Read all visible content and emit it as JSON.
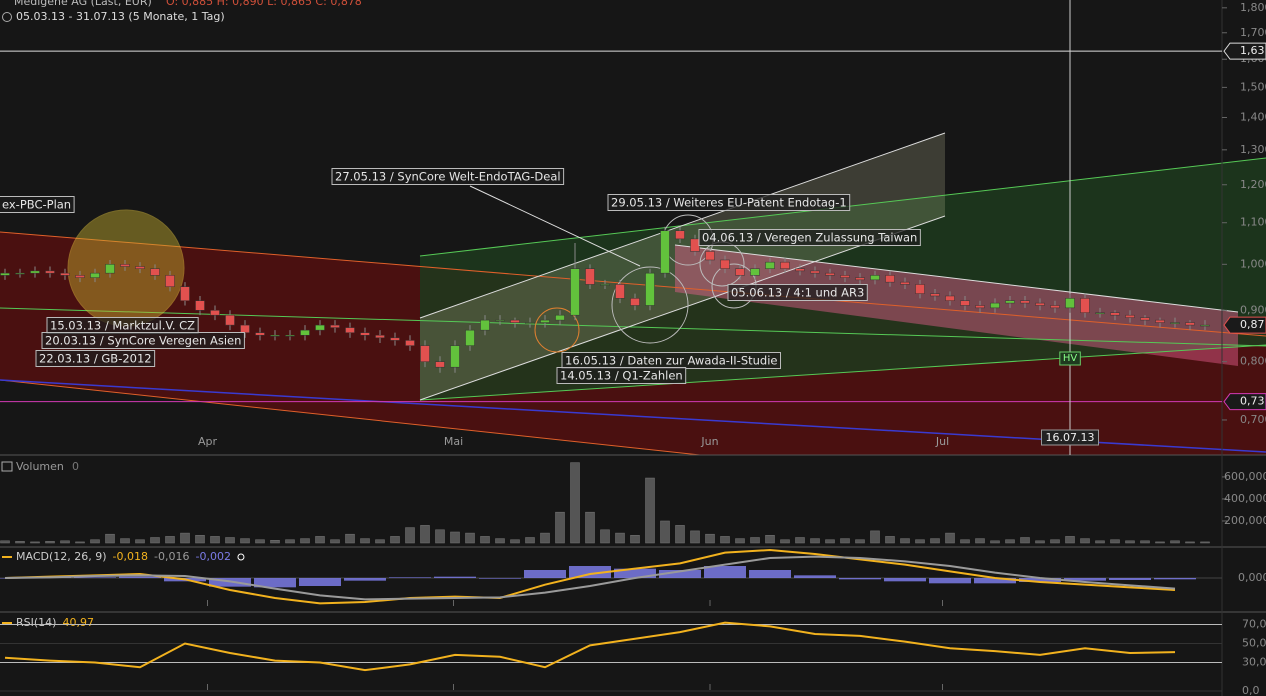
{
  "header": {
    "instrument": "Medigene AG (Last, EUR)",
    "ohlc": "O: 0,885  H: 0,890  L: 0,865  C: 0,878",
    "range": "05.03.13 - 31.07.13 (5 Monate, 1 Tag)"
  },
  "chart_data": [
    {
      "type": "candlestick",
      "open": [
        0.975,
        0.98,
        0.98,
        0.985,
        0.98,
        0.975,
        0.97,
        0.98,
        1.0,
        0.995,
        0.99,
        0.975,
        0.95,
        0.92,
        0.9,
        0.89,
        0.87,
        0.855,
        0.85,
        0.85,
        0.85,
        0.86,
        0.87,
        0.865,
        0.855,
        0.85,
        0.845,
        0.84,
        0.83,
        0.8,
        0.79,
        0.83,
        0.86,
        0.88,
        0.88,
        0.875,
        0.875,
        0.88,
        0.89,
        0.99,
        0.955,
        0.955,
        0.925,
        0.91,
        0.98,
        1.08,
        1.06,
        1.03,
        1.01,
        0.99,
        0.975,
        0.99,
        1.005,
        0.99,
        0.985,
        0.98,
        0.975,
        0.97,
        0.965,
        0.975,
        0.96,
        0.955,
        0.935,
        0.93,
        0.92,
        0.91,
        0.905,
        0.915,
        0.92,
        0.915,
        0.91,
        0.905,
        0.925,
        0.895,
        0.895,
        0.89,
        0.885,
        0.88,
        0.875,
        0.875,
        0.87
      ],
      "high": [
        0.99,
        0.99,
        0.995,
        0.995,
        0.99,
        0.985,
        0.99,
        1.01,
        1.01,
        1.005,
        1.0,
        0.985,
        0.96,
        0.93,
        0.91,
        0.9,
        0.88,
        0.865,
        0.86,
        0.86,
        0.87,
        0.88,
        0.88,
        0.875,
        0.865,
        0.86,
        0.855,
        0.85,
        0.84,
        0.81,
        0.84,
        0.87,
        0.89,
        0.89,
        0.885,
        0.885,
        0.89,
        0.9,
        1.05,
        1.0,
        0.965,
        0.965,
        0.935,
        0.99,
        1.09,
        1.09,
        1.07,
        1.04,
        1.02,
        1.0,
        1.0,
        1.015,
        1.015,
        1.0,
        0.995,
        0.99,
        0.985,
        0.98,
        0.985,
        0.985,
        0.97,
        0.965,
        0.945,
        0.94,
        0.93,
        0.92,
        0.925,
        0.93,
        0.93,
        0.925,
        0.92,
        0.935,
        0.935,
        0.905,
        0.9,
        0.9,
        0.89,
        0.885,
        0.885,
        0.88,
        0.88
      ],
      "low": [
        0.965,
        0.97,
        0.97,
        0.97,
        0.965,
        0.96,
        0.96,
        0.97,
        0.985,
        0.98,
        0.965,
        0.94,
        0.91,
        0.89,
        0.88,
        0.86,
        0.845,
        0.84,
        0.84,
        0.84,
        0.84,
        0.85,
        0.855,
        0.845,
        0.84,
        0.835,
        0.83,
        0.82,
        0.79,
        0.78,
        0.78,
        0.82,
        0.85,
        0.87,
        0.865,
        0.865,
        0.865,
        0.87,
        0.88,
        0.945,
        0.945,
        0.915,
        0.9,
        0.9,
        0.97,
        1.05,
        1.02,
        1.0,
        0.98,
        0.965,
        0.965,
        0.98,
        0.98,
        0.975,
        0.97,
        0.965,
        0.96,
        0.955,
        0.955,
        0.95,
        0.945,
        0.925,
        0.92,
        0.91,
        0.9,
        0.895,
        0.895,
        0.905,
        0.905,
        0.9,
        0.895,
        0.895,
        0.885,
        0.885,
        0.88,
        0.875,
        0.87,
        0.865,
        0.865,
        0.86,
        0.86
      ],
      "close": [
        0.98,
        0.98,
        0.985,
        0.98,
        0.975,
        0.97,
        0.98,
        1.0,
        0.995,
        0.99,
        0.975,
        0.95,
        0.92,
        0.9,
        0.89,
        0.87,
        0.855,
        0.85,
        0.85,
        0.85,
        0.86,
        0.87,
        0.865,
        0.855,
        0.85,
        0.845,
        0.84,
        0.83,
        0.8,
        0.79,
        0.83,
        0.86,
        0.88,
        0.88,
        0.875,
        0.875,
        0.88,
        0.89,
        0.99,
        0.955,
        0.955,
        0.925,
        0.91,
        0.98,
        1.08,
        1.06,
        1.03,
        1.01,
        0.99,
        0.975,
        0.99,
        1.005,
        0.99,
        0.985,
        0.98,
        0.975,
        0.97,
        0.965,
        0.975,
        0.96,
        0.955,
        0.935,
        0.93,
        0.92,
        0.91,
        0.905,
        0.915,
        0.92,
        0.915,
        0.91,
        0.905,
        0.925,
        0.895,
        0.895,
        0.89,
        0.885,
        0.88,
        0.875,
        0.875,
        0.87,
        0.87
      ],
      "up_color": "#62c23c",
      "down_color": "#e2514f",
      "log_scale": true,
      "ylim": [
        0.646,
        1.82
      ],
      "yticks": [
        {
          "value": 0.7,
          "label": "0,700"
        },
        {
          "value": 0.8,
          "label": "0,800"
        },
        {
          "value": 0.9,
          "label": "0,900"
        },
        {
          "value": 1.0,
          "label": "1,000"
        },
        {
          "value": 1.1,
          "label": "1,100"
        },
        {
          "value": 1.2,
          "label": "1,200"
        },
        {
          "value": 1.3,
          "label": "1,300"
        },
        {
          "value": 1.4,
          "label": "1,400"
        },
        {
          "value": 1.5,
          "label": "1,500"
        },
        {
          "value": 1.6,
          "label": "1,600"
        },
        {
          "value": 1.7,
          "label": "1,700"
        },
        {
          "value": 1.8,
          "label": "1,800"
        }
      ],
      "xticks": [
        {
          "value": 13.5,
          "label": "Apr"
        },
        {
          "value": 29.9,
          "label": "Mai"
        },
        {
          "value": 47,
          "label": "Jun"
        },
        {
          "value": 62.5,
          "label": "Jul"
        }
      ],
      "price_tags": [
        {
          "value": 1.63,
          "label": "1,63",
          "color": "#dddddd"
        },
        {
          "value": 0.87,
          "label": "0,87",
          "color": "#e2514f"
        },
        {
          "value": 0.73,
          "label": "0,73",
          "color": "#d23ab4"
        }
      ],
      "crosshair": {
        "index": 71,
        "label": "16.07.13"
      },
      "marker": "HV",
      "annotations": [
        "ex-PBC-Plan",
        "15.03.13 / Marktzul.V. CZ",
        "20.03.13 / SynCore Veregen Asien",
        "22.03.13 / GB-2012",
        "27.05.13 / SynCore Welt-EndoTAG-Deal",
        "29.05.13 / Weiteres EU-Patent Endotag-1",
        "04.06.13 / Veregen Zulassung Taiwan",
        "05.06.13 / 4:1 und AR3",
        "16.05.13 / Daten zur Awada-II-Studie",
        "14.05.13 / Q1-Zahlen"
      ]
    },
    {
      "type": "bar",
      "title": "Volumen",
      "title_value": "0",
      "color": "#555555",
      "values": [
        20000,
        15000,
        10000,
        15000,
        20000,
        10000,
        30000,
        80000,
        40000,
        30000,
        50000,
        60000,
        90000,
        70000,
        60000,
        50000,
        40000,
        30000,
        25000,
        30000,
        40000,
        60000,
        30000,
        80000,
        40000,
        30000,
        60000,
        140000,
        160000,
        120000,
        100000,
        90000,
        60000,
        40000,
        30000,
        50000,
        90000,
        280000,
        730000,
        280000,
        120000,
        90000,
        70000,
        590000,
        200000,
        160000,
        110000,
        80000,
        60000,
        40000,
        50000,
        70000,
        30000,
        50000,
        40000,
        30000,
        40000,
        30000,
        110000,
        60000,
        40000,
        30000,
        40000,
        90000,
        30000,
        40000,
        20000,
        30000,
        50000,
        20000,
        30000,
        60000,
        40000,
        20000,
        30000,
        20000,
        20000,
        10000,
        20000,
        10000,
        10000
      ],
      "ylim": [
        0,
        790000
      ],
      "yticks": [
        {
          "value": 200000,
          "label": "200,000"
        },
        {
          "value": 400000,
          "label": "400,000"
        },
        {
          "value": 600000,
          "label": "600,000"
        }
      ]
    },
    {
      "type": "macd",
      "title": "MACD(12, 26, 9)",
      "x": [
        0,
        3,
        6,
        9,
        12,
        15,
        18,
        21,
        24,
        27,
        30,
        33,
        36,
        39,
        42,
        45,
        48,
        51,
        54,
        57,
        60,
        63,
        66,
        69,
        72,
        75,
        78
      ],
      "series": [
        {
          "name": "MACD",
          "last_label": "-0,018",
          "color": "#f2b21e",
          "style": "line",
          "values": [
            0.0,
            0.002,
            0.004,
            0.006,
            -0.002,
            -0.018,
            -0.03,
            -0.038,
            -0.036,
            -0.03,
            -0.028,
            -0.03,
            -0.01,
            0.006,
            0.014,
            0.022,
            0.038,
            0.042,
            0.036,
            0.028,
            0.02,
            0.01,
            0.0,
            -0.006,
            -0.01,
            -0.014,
            -0.018
          ]
        },
        {
          "name": "Signal",
          "last_label": "-0,016",
          "color": "#9a9a9a",
          "style": "line",
          "values": [
            0.0,
            0.001,
            0.003,
            0.004,
            0.003,
            -0.005,
            -0.016,
            -0.026,
            -0.032,
            -0.031,
            -0.03,
            -0.029,
            -0.022,
            -0.012,
            0.0,
            0.01,
            0.02,
            0.03,
            0.032,
            0.03,
            0.025,
            0.018,
            0.008,
            0.0,
            -0.006,
            -0.011,
            -0.016
          ]
        },
        {
          "name": "Histogramm",
          "last_label": "-0,002",
          "color": "#7b7be6",
          "style": "bar",
          "values": [
            0.0,
            0.001,
            0.001,
            0.002,
            -0.005,
            -0.013,
            -0.014,
            -0.012,
            -0.004,
            0.001,
            0.002,
            -0.001,
            0.012,
            0.018,
            0.014,
            0.012,
            0.018,
            0.012,
            0.004,
            -0.002,
            -0.005,
            -0.008,
            -0.008,
            -0.006,
            -0.004,
            -0.003,
            -0.002
          ]
        }
      ],
      "ylim": [
        -0.048,
        0.048
      ],
      "yticks": [
        {
          "value": 0,
          "label": "0,000"
        }
      ]
    },
    {
      "type": "rsi",
      "title": "RSI(14)",
      "last_label": "40,97",
      "color": "#f2b21e",
      "x": [
        0,
        3,
        6,
        9,
        12,
        15,
        18,
        21,
        24,
        27,
        30,
        33,
        36,
        39,
        42,
        45,
        48,
        51,
        54,
        57,
        60,
        63,
        66,
        69,
        72,
        75,
        78
      ],
      "values": [
        35,
        32,
        30,
        25,
        50,
        40,
        32,
        30,
        22,
        28,
        38,
        36,
        25,
        48,
        55,
        62,
        72,
        68,
        60,
        58,
        52,
        45,
        42,
        38,
        45,
        40,
        40.97
      ],
      "ylim": [
        0,
        100
      ],
      "yticks": [
        {
          "value": 0,
          "label": "0,0"
        },
        {
          "value": 30,
          "label": "30,0"
        },
        {
          "value": 50,
          "label": "50,0"
        },
        {
          "value": 70,
          "label": "70,0"
        }
      ]
    }
  ]
}
